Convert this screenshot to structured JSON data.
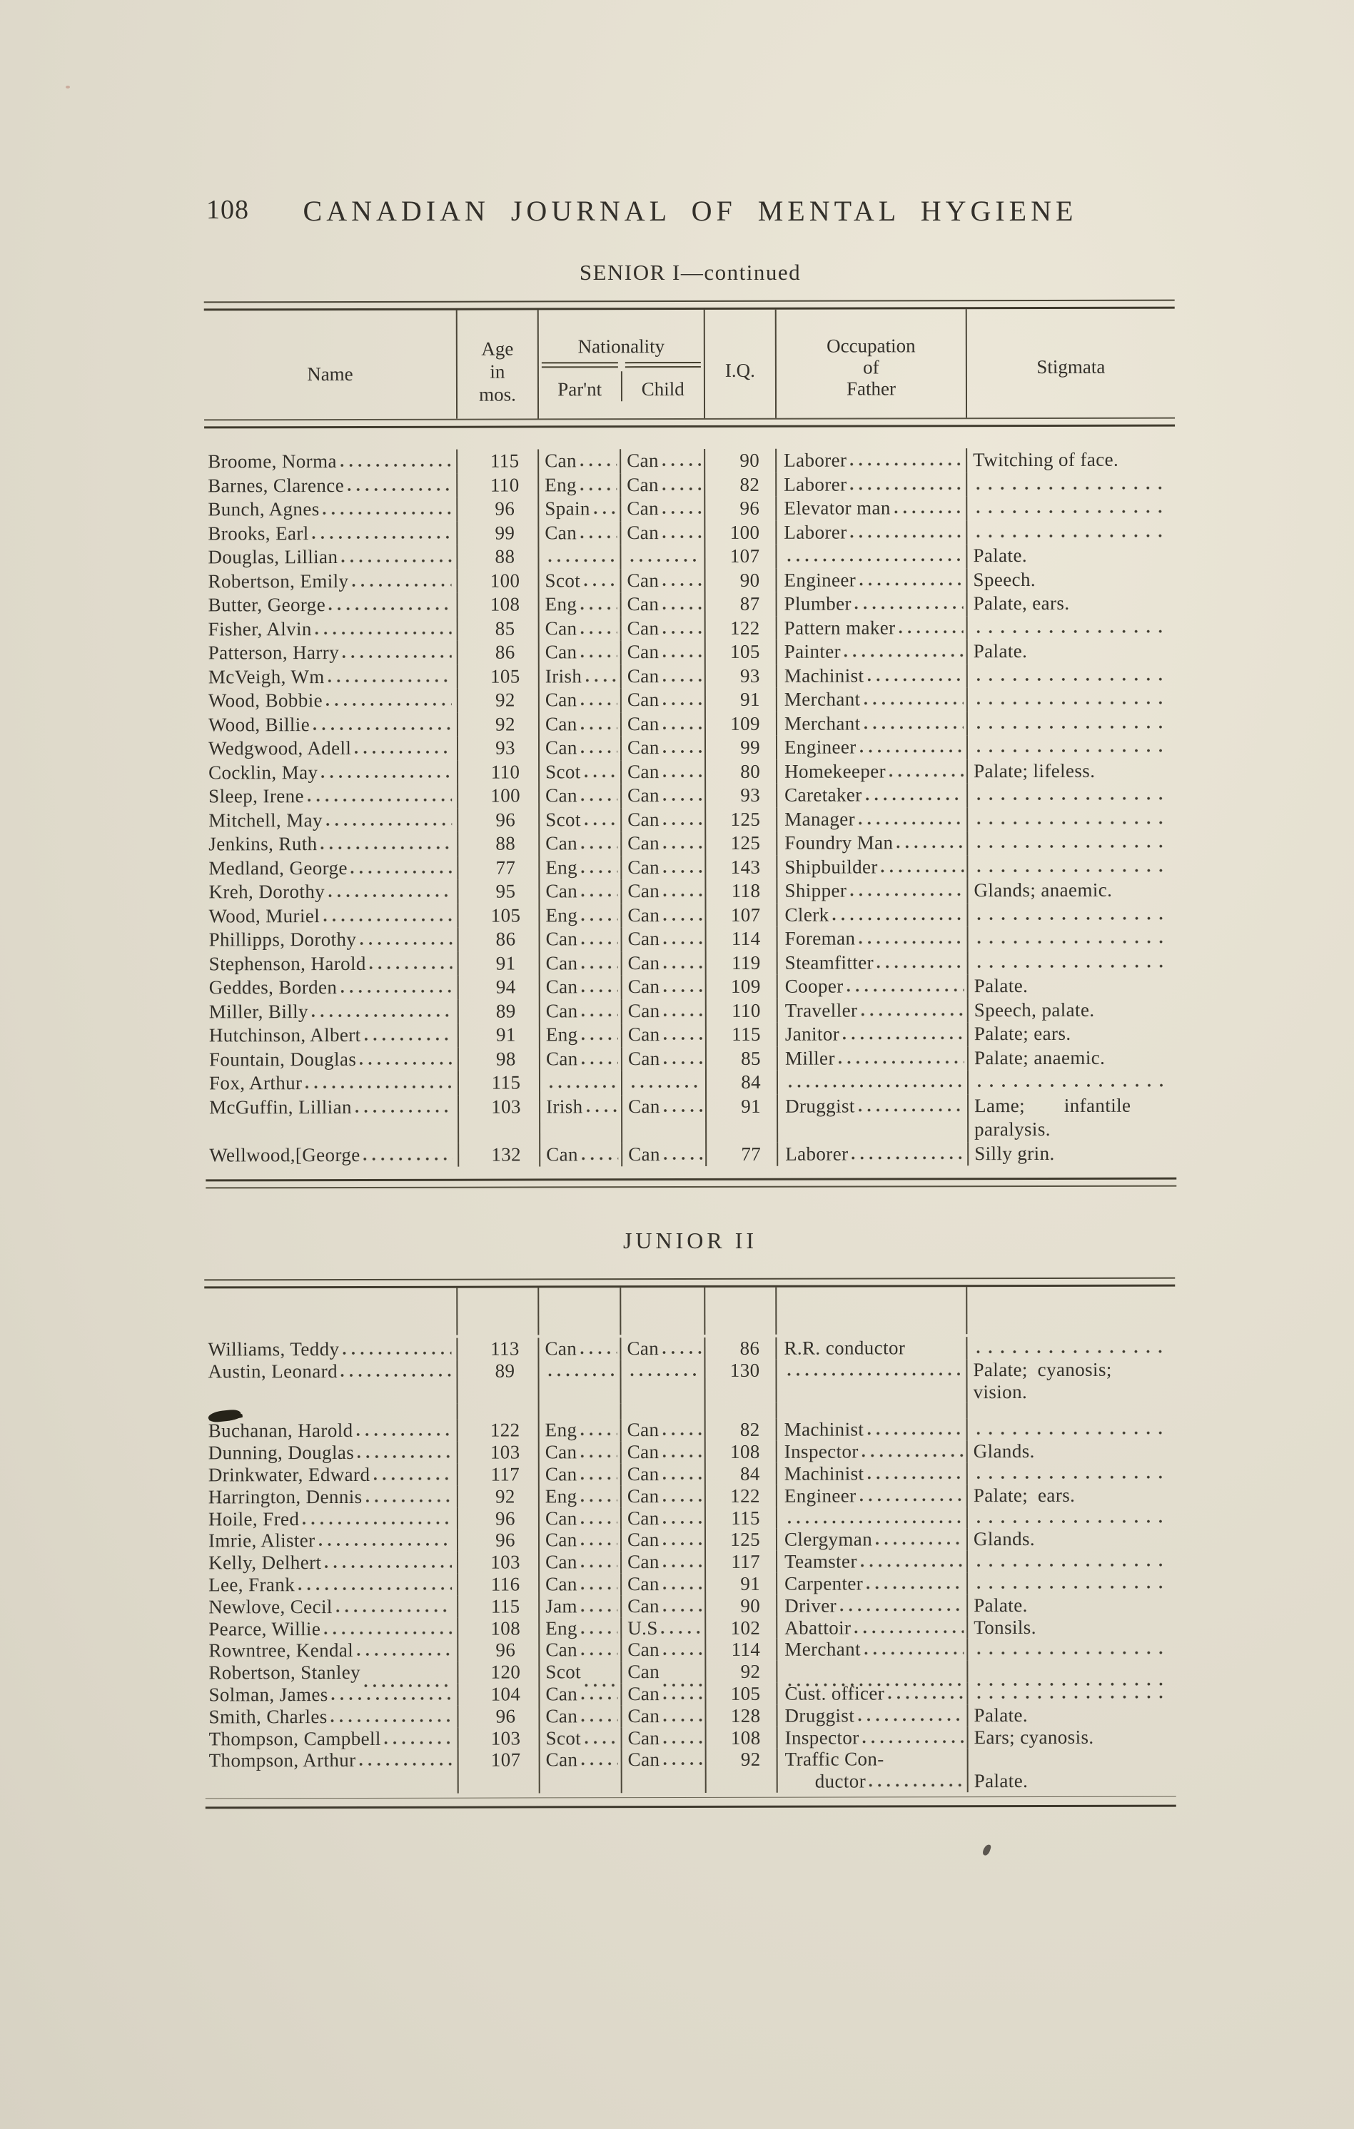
{
  "page": {
    "number": "108",
    "journal_title": "CANADIAN JOURNAL OF MENTAL HYGIENE"
  },
  "columns": {
    "name": "Name",
    "age": [
      "Age",
      "in",
      "mos."
    ],
    "nationality": "Nationality",
    "parent": "Par'nt",
    "child": "Child",
    "iq": "I.Q.",
    "occupation": [
      "Occupation",
      "of",
      "Father"
    ],
    "stigmata": "Stigmata"
  },
  "senior": {
    "title": "SENIOR I—continued",
    "rows": [
      {
        "n": "Broome, Norma",
        "a": "115",
        "p": "Can",
        "c": "Can",
        "q": "90",
        "o": "Laborer",
        "s": "Twitching of face."
      },
      {
        "n": "Barnes, Clarence",
        "a": "110",
        "p": "Eng",
        "c": "Can",
        "q": "82",
        "o": "Laborer",
        "s": ""
      },
      {
        "n": "Bunch, Agnes",
        "a": "96",
        "p": "Spain",
        "c": "Can",
        "q": "96",
        "o": "Elevator man",
        "s": ""
      },
      {
        "n": "Brooks, Earl",
        "a": "99",
        "p": "Can",
        "c": "Can",
        "q": "100",
        "o": "Laborer",
        "s": ""
      },
      {
        "n": "Douglas, Lillian",
        "a": "88",
        "p": "",
        "c": "",
        "q": "107",
        "o": "",
        "s": "Palate."
      },
      {
        "n": "Robertson, Emily",
        "a": "100",
        "p": "Scot",
        "c": "Can",
        "q": "90",
        "o": "Engineer",
        "s": "Speech."
      },
      {
        "n": "Butter, George",
        "a": "108",
        "p": "Eng",
        "c": "Can",
        "q": "87",
        "o": "Plumber",
        "s": "Palate, ears."
      },
      {
        "n": "Fisher, Alvin",
        "a": "85",
        "p": "Can",
        "c": "Can",
        "q": "122",
        "o": "Pattern maker",
        "s": ""
      },
      {
        "n": "Patterson, Harry",
        "a": "86",
        "p": "Can",
        "c": "Can",
        "q": "105",
        "o": "Painter",
        "s": "Palate."
      },
      {
        "n": "McVeigh, Wm",
        "a": "105",
        "p": "Irish",
        "c": "Can",
        "q": "93",
        "o": "Machinist",
        "s": ""
      },
      {
        "n": "Wood, Bobbie",
        "a": "92",
        "p": "Can",
        "c": "Can",
        "q": "91",
        "o": "Merchant",
        "s": ""
      },
      {
        "n": "Wood, Billie",
        "a": "92",
        "p": "Can",
        "c": "Can",
        "q": "109",
        "o": "Merchant",
        "s": ""
      },
      {
        "n": "Wedgwood, Adell",
        "a": "93",
        "p": "Can",
        "c": "Can",
        "q": "99",
        "o": "Engineer",
        "s": ""
      },
      {
        "n": "Cocklin, May",
        "a": "110",
        "p": "Scot",
        "c": "Can",
        "q": "80",
        "o": "Homekeeper",
        "s": "Palate; lifeless."
      },
      {
        "n": "Sleep, Irene",
        "a": "100",
        "p": "Can",
        "c": "Can",
        "q": "93",
        "o": "Caretaker",
        "s": ""
      },
      {
        "n": "Mitchell, May",
        "a": "96",
        "p": "Scot",
        "c": "Can",
        "q": "125",
        "o": "Manager",
        "s": ""
      },
      {
        "n": "Jenkins, Ruth",
        "a": "88",
        "p": "Can",
        "c": "Can",
        "q": "125",
        "o": "Foundry Man",
        "s": ""
      },
      {
        "n": "Medland, George",
        "a": "77",
        "p": "Eng",
        "c": "Can",
        "q": "143",
        "o": "Shipbuilder",
        "s": ""
      },
      {
        "n": "Kreh, Dorothy",
        "a": "95",
        "p": "Can",
        "c": "Can",
        "q": "118",
        "o": "Shipper",
        "s": "Glands; anaemic."
      },
      {
        "n": "Wood, Muriel",
        "a": "105",
        "p": "Eng",
        "c": "Can",
        "q": "107",
        "o": "Clerk",
        "s": ""
      },
      {
        "n": "Phillipps, Dorothy",
        "a": "86",
        "p": "Can",
        "c": "Can",
        "q": "114",
        "o": "Foreman",
        "s": ""
      },
      {
        "n": "Stephenson, Harold",
        "a": "91",
        "p": "Can",
        "c": "Can",
        "q": "119",
        "o": "Steamfitter",
        "s": ""
      },
      {
        "n": "Geddes, Borden",
        "a": "94",
        "p": "Can",
        "c": "Can",
        "q": "109",
        "o": "Cooper",
        "s": "Palate."
      },
      {
        "n": "Miller, Billy",
        "a": "89",
        "p": "Can",
        "c": "Can",
        "q": "110",
        "o": "Traveller",
        "s": "Speech, palate."
      },
      {
        "n": "Hutchinson, Albert",
        "a": "91",
        "p": "Eng",
        "c": "Can",
        "q": "115",
        "o": "Janitor",
        "s": "Palate; ears."
      },
      {
        "n": "Fountain, Douglas",
        "a": "98",
        "p": "Can",
        "c": "Can",
        "q": "85",
        "o": "Miller",
        "s": "Palate; anaemic."
      },
      {
        "n": "Fox, Arthur",
        "a": "115",
        "p": "",
        "c": "",
        "q": "84",
        "o": "",
        "s": ""
      },
      {
        "n": "McGuffin, Lillian",
        "a": "103",
        "p": "Irish",
        "c": "Can",
        "q": "91",
        "o": "Druggist",
        "s": "Lame;  infantile\nparalysis."
      },
      {
        "n": "Wellwood,[George",
        "a": "132",
        "p": "Can",
        "c": "Can",
        "q": "77",
        "o": "Laborer",
        "s": "Silly grin."
      }
    ]
  },
  "junior": {
    "title": "JUNIOR II",
    "rows": [
      {
        "n": "Williams, Teddy",
        "a": "113",
        "p": "Can",
        "c": "Can",
        "q": "86",
        "o": "R.R. conductor",
        "oNoDots": true,
        "s": ""
      },
      {
        "n": "Austin, Leonard",
        "a": "89",
        "p": "",
        "c": "",
        "q": "130",
        "o": "",
        "s": "Palate; cyanosis;\nvision."
      },
      {
        "smudge": true
      },
      {
        "n": "Buchanan, Harold",
        "a": "122",
        "p": "Eng",
        "c": "Can",
        "q": "82",
        "o": "Machinist",
        "s": ""
      },
      {
        "n": "Dunning, Douglas",
        "a": "103",
        "p": "Can",
        "c": "Can",
        "q": "108",
        "o": "Inspector",
        "s": "Glands."
      },
      {
        "n": "Drinkwater, Edward",
        "a": "117",
        "p": "Can",
        "c": "Can",
        "q": "84",
        "o": "Machinist",
        "s": ""
      },
      {
        "n": "Harrington, Dennis",
        "a": "92",
        "p": "Eng",
        "c": "Can",
        "q": "122",
        "o": "Engineer",
        "s": "Palate; ears."
      },
      {
        "n": "Hoile, Fred",
        "a": "96",
        "p": "Can",
        "c": "Can",
        "q": "115",
        "o": "",
        "s": ""
      },
      {
        "n": "Imrie, Alister",
        "a": "96",
        "p": "Can",
        "c": "Can",
        "q": "125",
        "o": "Clergyman",
        "s": "Glands."
      },
      {
        "n": "Kelly, Delhert",
        "a": "103",
        "p": "Can",
        "c": "Can",
        "q": "117",
        "o": "Teamster",
        "s": ""
      },
      {
        "n": "Lee, Frank",
        "a": "116",
        "p": "Can",
        "c": "Can",
        "q": "91",
        "o": "Carpenter",
        "s": ""
      },
      {
        "n": "Newlove, Cecil",
        "a": "115",
        "p": "Jam",
        "c": "Can",
        "q": "90",
        "o": "Driver",
        "s": "Palate."
      },
      {
        "n": "Pearce, Willie",
        "a": "108",
        "p": "Eng",
        "c": "U.S",
        "q": "102",
        "o": "Abattoir",
        "s": "Tonsils."
      },
      {
        "n": "Rowntree, Kendal",
        "a": "96",
        "p": "Can",
        "c": "Can",
        "q": "114",
        "o": "Merchant",
        "s": ""
      },
      {
        "n": "Robertson, Stanley",
        "a": "120",
        "p": "Scot",
        "c": "Can",
        "q": "92",
        "o": "",
        "s": "",
        "dotsLow": true
      },
      {
        "n": "Solman, James",
        "a": "104",
        "p": "Can",
        "c": "Can",
        "q": "105",
        "o": "Cust. officer",
        "s": ""
      },
      {
        "n": "Smith, Charles",
        "a": "96",
        "p": "Can",
        "c": "Can",
        "q": "128",
        "o": "Druggist",
        "s": "Palate."
      },
      {
        "n": "Thompson, Campbell",
        "a": "103",
        "p": "Scot",
        "c": "Can",
        "q": "108",
        "o": "Inspector",
        "s": "Ears; cyanosis."
      },
      {
        "n": "Thompson, Arthur",
        "a": "107",
        "p": "Can",
        "c": "Can",
        "q": "92",
        "oLines": [
          "Traffic Con-",
          "ductor"
        ],
        "s": " \nPalate."
      }
    ]
  }
}
